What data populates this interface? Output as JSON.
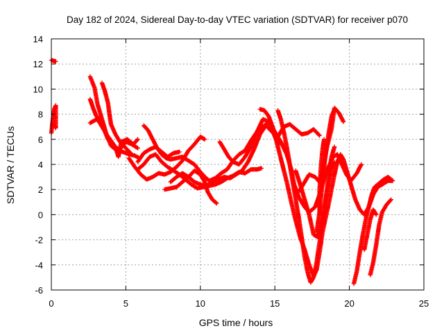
{
  "chart_data": {
    "type": "scatter",
    "title": "Day 182 of 2024, Sidereal Day-to-day VTEC variation (SDTVAR) for receiver p070",
    "xlabel": "GPS time / hours",
    "ylabel": "SDTVAR / TECUs",
    "xlim": [
      0,
      25
    ],
    "ylim": [
      -6,
      14
    ],
    "xticks": [
      0,
      5,
      10,
      15,
      20,
      25
    ],
    "yticks": [
      -6,
      -4,
      -2,
      0,
      2,
      4,
      6,
      8,
      10,
      12,
      14
    ],
    "grid": true,
    "marker": "plus",
    "series_color": "#ff0000",
    "tracks": [
      [
        [
          0.0,
          12.3
        ],
        [
          0.3,
          12.2
        ]
      ],
      [
        [
          0.0,
          6.5
        ],
        [
          0.1,
          7.6
        ],
        [
          0.2,
          8.4
        ],
        [
          0.3,
          8.7
        ],
        [
          0.3,
          6.9
        ],
        [
          0.15,
          7.2
        ]
      ],
      [
        [
          2.6,
          11.0
        ],
        [
          2.9,
          10.1
        ],
        [
          3.1,
          8.8
        ],
        [
          3.4,
          7.6
        ],
        [
          3.7,
          6.4
        ],
        [
          4.0,
          5.5
        ],
        [
          4.4,
          5.1
        ],
        [
          4.8,
          5.0
        ],
        [
          5.2,
          4.8
        ],
        [
          5.6,
          4.7
        ],
        [
          5.9,
          4.5
        ]
      ],
      [
        [
          2.6,
          9.2
        ],
        [
          2.8,
          8.5
        ],
        [
          3.0,
          7.9
        ],
        [
          3.2,
          7.5
        ],
        [
          3.4,
          7.2
        ],
        [
          3.6,
          6.6
        ],
        [
          3.8,
          6.0
        ],
        [
          4.2,
          5.4
        ],
        [
          4.6,
          5.2
        ],
        [
          5.0,
          5.8
        ],
        [
          5.4,
          5.6
        ],
        [
          5.8,
          5.3
        ]
      ],
      [
        [
          2.6,
          7.3
        ],
        [
          2.9,
          7.5
        ],
        [
          3.1,
          7.6
        ],
        [
          3.4,
          7.0
        ],
        [
          3.7,
          6.4
        ],
        [
          4.0,
          5.9
        ],
        [
          4.3,
          5.4
        ],
        [
          4.5,
          4.6
        ],
        [
          4.7,
          5.8
        ],
        [
          5.1,
          6.0
        ],
        [
          5.5,
          5.6
        ],
        [
          5.8,
          6.0
        ]
      ],
      [
        [
          3.4,
          10.5
        ],
        [
          3.6,
          9.8
        ],
        [
          3.8,
          8.9
        ],
        [
          3.9,
          8.0
        ],
        [
          4.0,
          7.2
        ],
        [
          4.3,
          6.4
        ],
        [
          4.6,
          5.8
        ],
        [
          5.0,
          5.3
        ],
        [
          5.4,
          4.8
        ]
      ],
      [
        [
          5.2,
          4.5
        ],
        [
          5.6,
          3.8
        ],
        [
          6.0,
          3.2
        ],
        [
          6.4,
          2.8
        ],
        [
          6.8,
          3.0
        ],
        [
          7.2,
          3.3
        ],
        [
          7.6,
          3.2
        ],
        [
          8.0,
          3.4
        ],
        [
          8.4,
          3.8
        ],
        [
          8.8,
          4.3
        ],
        [
          9.2,
          5.1
        ],
        [
          9.6,
          5.6
        ],
        [
          10.0,
          6.2
        ],
        [
          10.3,
          6.0
        ]
      ],
      [
        [
          6.2,
          7.1
        ],
        [
          6.5,
          6.7
        ],
        [
          6.8,
          6.0
        ],
        [
          7.1,
          5.3
        ],
        [
          7.4,
          4.8
        ],
        [
          7.7,
          4.5
        ],
        [
          8.0,
          4.4
        ],
        [
          8.4,
          4.5
        ],
        [
          8.8,
          4.6
        ],
        [
          9.2,
          4.3
        ],
        [
          9.6,
          4.0
        ],
        [
          10.0,
          3.4
        ],
        [
          10.3,
          3.0
        ],
        [
          10.6,
          2.7
        ],
        [
          11.0,
          2.9
        ],
        [
          11.4,
          3.3
        ],
        [
          11.8,
          3.6
        ],
        [
          12.2,
          4.3
        ],
        [
          12.6,
          4.8
        ],
        [
          13.0,
          5.1
        ],
        [
          13.4,
          5.9
        ],
        [
          13.8,
          6.6
        ],
        [
          14.2,
          7.0
        ],
        [
          14.6,
          7.4
        ],
        [
          15.0,
          6.2
        ],
        [
          15.3,
          5.6
        ]
      ],
      [
        [
          5.8,
          4.2
        ],
        [
          6.2,
          4.9
        ],
        [
          6.6,
          5.2
        ],
        [
          7.0,
          5.4
        ],
        [
          7.4,
          5.0
        ],
        [
          7.8,
          4.6
        ],
        [
          8.2,
          4.9
        ],
        [
          8.6,
          5.0
        ]
      ],
      [
        [
          5.8,
          3.6
        ],
        [
          6.2,
          4.0
        ],
        [
          6.6,
          4.6
        ],
        [
          7.0,
          4.8
        ],
        [
          7.4,
          4.2
        ],
        [
          7.8,
          3.8
        ],
        [
          8.2,
          3.5
        ],
        [
          8.6,
          3.2
        ],
        [
          9.0,
          2.8
        ],
        [
          9.4,
          2.4
        ],
        [
          9.8,
          2.1
        ],
        [
          10.2,
          2.2
        ],
        [
          10.6,
          2.3
        ],
        [
          11.0,
          2.4
        ],
        [
          11.4,
          2.6
        ],
        [
          11.8,
          2.9
        ],
        [
          12.2,
          3.1
        ],
        [
          12.6,
          3.4
        ],
        [
          13.0,
          3.3
        ],
        [
          13.4,
          3.6
        ],
        [
          13.8,
          3.6
        ],
        [
          14.1,
          3.7
        ]
      ],
      [
        [
          7.6,
          2.0
        ],
        [
          8.0,
          2.1
        ],
        [
          8.4,
          2.2
        ],
        [
          8.8,
          2.6
        ],
        [
          9.2,
          3.0
        ],
        [
          9.6,
          3.5
        ],
        [
          10.0,
          3.2
        ],
        [
          10.3,
          2.6
        ],
        [
          10.5,
          1.8
        ],
        [
          10.8,
          1.2
        ],
        [
          11.1,
          0.9
        ]
      ],
      [
        [
          8.0,
          2.6
        ],
        [
          8.4,
          3.0
        ],
        [
          8.8,
          3.3
        ],
        [
          9.2,
          3.0
        ],
        [
          9.6,
          2.6
        ],
        [
          10.0,
          2.4
        ],
        [
          10.4,
          2.3
        ],
        [
          10.8,
          2.6
        ],
        [
          11.2,
          2.8
        ],
        [
          11.6,
          3.0
        ],
        [
          12.0,
          2.9
        ],
        [
          12.4,
          3.2
        ],
        [
          12.8,
          3.5
        ],
        [
          13.2,
          4.2
        ],
        [
          13.6,
          5.2
        ],
        [
          14.0,
          6.4
        ],
        [
          14.4,
          7.1
        ],
        [
          14.8,
          6.6
        ],
        [
          15.2,
          6.2
        ],
        [
          15.6,
          7.0
        ],
        [
          16.0,
          7.2
        ],
        [
          16.4,
          6.8
        ],
        [
          16.8,
          6.4
        ],
        [
          17.2,
          6.5
        ],
        [
          17.6,
          6.8
        ],
        [
          18.0,
          6.3
        ]
      ],
      [
        [
          11.3,
          5.8
        ],
        [
          11.6,
          5.2
        ],
        [
          11.9,
          4.6
        ],
        [
          12.2,
          4.2
        ],
        [
          12.6,
          4.0
        ],
        [
          13.0,
          4.6
        ],
        [
          13.4,
          5.4
        ],
        [
          13.8,
          6.6
        ],
        [
          14.2,
          7.6
        ],
        [
          14.6,
          7.4
        ],
        [
          15.0,
          6.6
        ],
        [
          15.4,
          5.8
        ],
        [
          15.8,
          4.8
        ],
        [
          16.1,
          3.6
        ],
        [
          16.3,
          2.4
        ],
        [
          16.6,
          1.4
        ],
        [
          17.0,
          0.6
        ],
        [
          17.3,
          0.2
        ],
        [
          17.7,
          0.6
        ],
        [
          18.0,
          1.6
        ],
        [
          18.3,
          2.8
        ],
        [
          18.6,
          3.8
        ],
        [
          18.9,
          4.6
        ],
        [
          19.2,
          4.8
        ],
        [
          19.5,
          4.0
        ],
        [
          19.8,
          3.2
        ],
        [
          20.1,
          2.7
        ],
        [
          20.5,
          3.3
        ],
        [
          20.8,
          4.0
        ]
      ],
      [
        [
          14.0,
          8.4
        ],
        [
          14.3,
          8.3
        ],
        [
          14.6,
          7.8
        ],
        [
          14.9,
          6.8
        ],
        [
          15.2,
          5.4
        ],
        [
          15.5,
          4.0
        ],
        [
          15.8,
          2.6
        ],
        [
          16.1,
          1.0
        ],
        [
          16.4,
          -0.5
        ],
        [
          16.7,
          -1.8
        ],
        [
          17.0,
          -2.8
        ],
        [
          17.3,
          -4.0
        ],
        [
          17.6,
          -4.9
        ],
        [
          17.8,
          -4.4
        ],
        [
          18.0,
          -3.0
        ],
        [
          18.2,
          -1.4
        ],
        [
          18.4,
          -0.3
        ],
        [
          18.6,
          0.8
        ],
        [
          18.8,
          2.0
        ],
        [
          19.0,
          3.2
        ],
        [
          19.2,
          4.2
        ],
        [
          19.4,
          4.8
        ],
        [
          19.6,
          4.4
        ],
        [
          19.8,
          3.6
        ],
        [
          20.1,
          2.4
        ],
        [
          20.4,
          1.2
        ],
        [
          20.7,
          0.4
        ],
        [
          21.0,
          0.0
        ],
        [
          21.3,
          0.6
        ],
        [
          21.6,
          1.6
        ],
        [
          21.9,
          2.2
        ],
        [
          22.2,
          2.4
        ],
        [
          22.6,
          2.7
        ],
        [
          22.9,
          2.7
        ]
      ],
      [
        [
          15.2,
          8.3
        ],
        [
          15.4,
          7.6
        ],
        [
          15.6,
          6.6
        ],
        [
          15.8,
          5.4
        ],
        [
          16.0,
          4.0
        ],
        [
          16.2,
          2.6
        ],
        [
          16.4,
          1.2
        ],
        [
          16.6,
          -0.2
        ],
        [
          16.8,
          -1.8
        ],
        [
          17.0,
          -3.4
        ],
        [
          17.2,
          -4.6
        ],
        [
          17.4,
          -5.4
        ],
        [
          17.6,
          -5.0
        ],
        [
          17.8,
          -3.8
        ],
        [
          18.0,
          -2.2
        ],
        [
          18.2,
          -0.6
        ],
        [
          18.4,
          1.2
        ],
        [
          18.6,
          3.0
        ],
        [
          18.8,
          4.6
        ],
        [
          19.0,
          5.4
        ]
      ],
      [
        [
          16.4,
          3.5
        ],
        [
          16.7,
          2.4
        ],
        [
          17.0,
          1.2
        ],
        [
          17.3,
          0.0
        ],
        [
          17.6,
          -1.6
        ],
        [
          17.9,
          -1.8
        ],
        [
          18.2,
          -0.4
        ],
        [
          18.5,
          1.8
        ],
        [
          18.8,
          3.6
        ],
        [
          19.0,
          4.2
        ]
      ],
      [
        [
          16.6,
          1.8
        ],
        [
          16.9,
          2.4
        ],
        [
          17.3,
          3.2
        ],
        [
          17.7,
          3.0
        ],
        [
          18.0,
          2.6
        ],
        [
          18.3,
          4.0
        ],
        [
          18.5,
          5.4
        ],
        [
          18.8,
          6.8
        ],
        [
          19.0,
          8.5
        ],
        [
          19.3,
          8.1
        ],
        [
          19.6,
          7.4
        ]
      ],
      [
        [
          17.8,
          -1.4
        ],
        [
          18.0,
          0.2
        ],
        [
          18.2,
          2.6
        ],
        [
          18.4,
          4.8
        ],
        [
          18.6,
          6.4
        ],
        [
          18.8,
          7.8
        ],
        [
          19.0,
          8.4
        ]
      ],
      [
        [
          18.0,
          0.0
        ],
        [
          18.0,
          2.0
        ],
        [
          18.1,
          4.0
        ],
        [
          18.2,
          5.2
        ],
        [
          18.3,
          6.0
        ]
      ],
      [
        [
          20.3,
          -5.5
        ],
        [
          20.5,
          -4.5
        ],
        [
          20.7,
          -3.0
        ],
        [
          20.9,
          -1.6
        ],
        [
          21.1,
          -0.4
        ],
        [
          21.3,
          0.6
        ],
        [
          21.5,
          1.6
        ],
        [
          21.7,
          2.2
        ],
        [
          22.0,
          2.5
        ],
        [
          22.3,
          2.8
        ],
        [
          22.6,
          3.0
        ],
        [
          22.9,
          2.7
        ]
      ],
      [
        [
          21.4,
          -4.8
        ],
        [
          21.6,
          -3.8
        ],
        [
          21.8,
          -2.4
        ],
        [
          22.0,
          -0.8
        ],
        [
          22.2,
          0.2
        ],
        [
          22.5,
          0.8
        ],
        [
          22.8,
          1.2
        ]
      ],
      [
        [
          21.0,
          -2.8
        ],
        [
          21.2,
          -1.6
        ],
        [
          21.4,
          -0.4
        ],
        [
          21.6,
          0.4
        ],
        [
          21.8,
          0.0
        ]
      ]
    ]
  }
}
